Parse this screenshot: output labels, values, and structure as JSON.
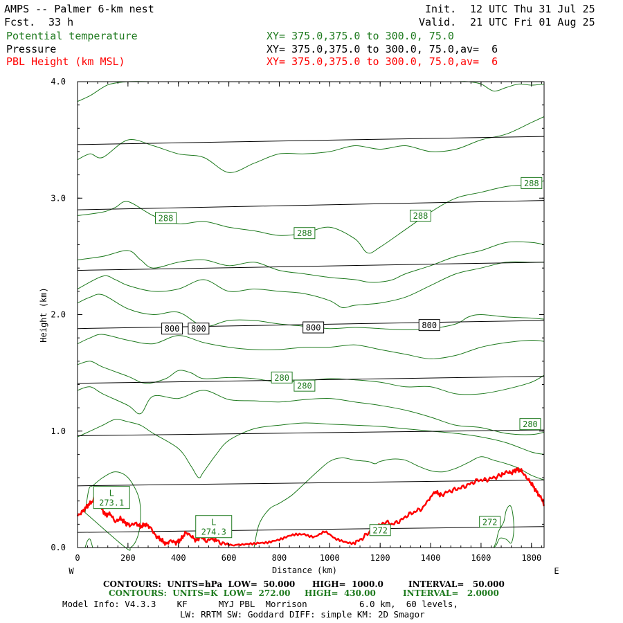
{
  "header": {
    "title": "AMPS -- Palmer 6-km nest",
    "init_label": "Init.",
    "init": "12 UTC Thu 31 Jul 25",
    "fcst_label": "Fcst.",
    "fcst": "33 h",
    "valid_label": "Valid.",
    "valid": "21 UTC Fri 01 Aug 25"
  },
  "fields": [
    {
      "name": "Potential temperature",
      "xy": "XY= 375.0,375.0 to 300.0, 75.0",
      "color": "#1e7a1e"
    },
    {
      "name": "Pressure",
      "xy": "XY= 375.0,375.0 to 300.0, 75.0,av=  6",
      "color": "#000000"
    },
    {
      "name": "PBL Height (km MSL)",
      "xy": "XY= 375.0,375.0 to 300.0, 75.0,av=  6",
      "color": "#ff0000"
    }
  ],
  "chart_data": {
    "type": "line",
    "xlabel": "Distance (km)",
    "ylabel": "Height (km)",
    "xlim": [
      0,
      1850
    ],
    "ylim": [
      0,
      4
    ],
    "x_ticks": [
      0,
      200,
      400,
      600,
      800,
      1000,
      1200,
      1400,
      1600,
      1800
    ],
    "x_tick_labels": [
      "0",
      "200",
      "400",
      "600",
      "800",
      "1000",
      "1200",
      "1400",
      "1600",
      "1800"
    ],
    "y_ticks": [
      0,
      1,
      2,
      3,
      4
    ],
    "y_tick_labels": [
      "0.0",
      "1.0",
      "2.0",
      "3.0",
      "4.0"
    ],
    "west_label": "W",
    "east_label": "E",
    "pressure_lines": [
      {
        "x": [
          0,
          1850
        ],
        "y": [
          0.13,
          0.18
        ]
      },
      {
        "x": [
          0,
          1850
        ],
        "y": [
          0.53,
          0.58
        ]
      },
      {
        "x": [
          0,
          1850
        ],
        "y": [
          0.96,
          1.01
        ]
      },
      {
        "x": [
          0,
          1850
        ],
        "y": [
          1.41,
          1.47
        ]
      },
      {
        "x": [
          0,
          1850
        ],
        "y": [
          1.88,
          1.95
        ]
      },
      {
        "x": [
          0,
          1850
        ],
        "y": [
          2.38,
          2.45
        ]
      },
      {
        "x": [
          0,
          1850
        ],
        "y": [
          2.9,
          2.98
        ]
      },
      {
        "x": [
          0,
          1850
        ],
        "y": [
          3.46,
          3.53
        ]
      }
    ],
    "pressure_labels": [
      {
        "text": "800",
        "x": 375,
        "y": 1.88
      },
      {
        "text": "800",
        "x": 480,
        "y": 1.88
      },
      {
        "text": "800",
        "x": 935,
        "y": 1.89
      },
      {
        "text": "800",
        "x": 1395,
        "y": 1.91
      }
    ],
    "theta_contours": [
      {
        "x": [
          0,
          50,
          100,
          150,
          200,
          250,
          300,
          400,
          450,
          480,
          500,
          550,
          600,
          700,
          800,
          900,
          1000,
          1100,
          1200,
          1300,
          1400,
          1500,
          1600,
          1700,
          1800,
          1850
        ],
        "y": [
          0.95,
          1.0,
          1.05,
          1.1,
          1.08,
          1.05,
          0.98,
          0.85,
          0.7,
          0.6,
          0.65,
          0.8,
          0.92,
          1.02,
          1.05,
          1.07,
          1.06,
          1.05,
          1.04,
          1.02,
          1.0,
          0.98,
          0.95,
          0.9,
          0.82,
          0.8
        ]
      },
      {
        "x": [
          0,
          50,
          100,
          200,
          250,
          300,
          400,
          500,
          600,
          700,
          800,
          900,
          1000,
          1100,
          1200,
          1300,
          1400,
          1500,
          1600,
          1700,
          1800,
          1850
        ],
        "y": [
          1.35,
          1.38,
          1.32,
          1.22,
          1.15,
          1.3,
          1.28,
          1.35,
          1.27,
          1.26,
          1.25,
          1.27,
          1.28,
          1.25,
          1.22,
          1.18,
          1.12,
          1.05,
          1.03,
          0.98,
          0.97,
          0.99
        ]
      },
      {
        "x": [
          0,
          50,
          100,
          200,
          270,
          350,
          400,
          450,
          500,
          600,
          700,
          800,
          900,
          1000,
          1100,
          1200,
          1300,
          1400,
          1500,
          1600,
          1700,
          1800,
          1850
        ],
        "y": [
          1.57,
          1.6,
          1.55,
          1.47,
          1.41,
          1.45,
          1.52,
          1.5,
          1.45,
          1.46,
          1.45,
          1.42,
          1.43,
          1.45,
          1.44,
          1.42,
          1.38,
          1.38,
          1.32,
          1.32,
          1.36,
          1.42,
          1.48
        ]
      },
      {
        "x": [
          0,
          50,
          100,
          200,
          300,
          400,
          500,
          600,
          700,
          800,
          900,
          1000,
          1100,
          1200,
          1300,
          1400,
          1500,
          1600,
          1700,
          1800,
          1850
        ],
        "y": [
          1.75,
          1.8,
          1.83,
          1.78,
          1.75,
          1.82,
          1.76,
          1.72,
          1.7,
          1.7,
          1.72,
          1.72,
          1.74,
          1.7,
          1.66,
          1.62,
          1.65,
          1.72,
          1.76,
          1.78,
          1.77
        ]
      },
      {
        "x": [
          0,
          50,
          100,
          200,
          300,
          400,
          500,
          600,
          700,
          800,
          900,
          1000,
          1100,
          1200,
          1300,
          1400,
          1500,
          1550,
          1600,
          1700,
          1800,
          1850
        ],
        "y": [
          2.1,
          2.15,
          2.17,
          2.05,
          2.0,
          2.02,
          1.9,
          1.95,
          1.95,
          1.92,
          1.9,
          1.88,
          1.89,
          1.88,
          1.87,
          1.88,
          1.92,
          1.98,
          2.0,
          1.98,
          1.97,
          1.96
        ]
      },
      {
        "x": [
          0,
          100,
          150,
          200,
          300,
          400,
          500,
          600,
          700,
          800,
          900,
          1000,
          1050,
          1100,
          1200,
          1300,
          1400,
          1500,
          1600,
          1700,
          1800,
          1850
        ],
        "y": [
          2.22,
          2.33,
          2.3,
          2.25,
          2.2,
          2.22,
          2.3,
          2.2,
          2.22,
          2.2,
          2.18,
          2.12,
          2.06,
          2.08,
          2.1,
          2.15,
          2.25,
          2.35,
          2.4,
          2.45,
          2.45,
          2.45
        ]
      },
      {
        "x": [
          0,
          100,
          200,
          250,
          300,
          400,
          500,
          600,
          700,
          800,
          900,
          1000,
          1100,
          1150,
          1200,
          1250,
          1300,
          1400,
          1500,
          1600,
          1700,
          1800,
          1850
        ],
        "y": [
          2.47,
          2.5,
          2.55,
          2.47,
          2.4,
          2.45,
          2.47,
          2.42,
          2.45,
          2.38,
          2.35,
          2.32,
          2.3,
          2.28,
          2.28,
          2.3,
          2.35,
          2.42,
          2.5,
          2.55,
          2.62,
          2.62,
          2.6
        ]
      },
      {
        "x": [
          0,
          100,
          150,
          200,
          300,
          400,
          500,
          600,
          700,
          800,
          900,
          1000,
          1100,
          1150,
          1200,
          1300,
          1400,
          1500,
          1600,
          1700,
          1800,
          1850
        ],
        "y": [
          2.85,
          2.88,
          2.92,
          2.97,
          2.85,
          2.78,
          2.8,
          2.75,
          2.72,
          2.68,
          2.7,
          2.75,
          2.65,
          2.53,
          2.58,
          2.73,
          2.88,
          3.0,
          3.05,
          3.1,
          3.12,
          3.15
        ]
      },
      {
        "x": [
          0,
          50,
          100,
          200,
          300,
          400,
          500,
          600,
          700,
          800,
          900,
          1000,
          1100,
          1200,
          1300,
          1400,
          1500,
          1600,
          1700,
          1800,
          1850
        ],
        "y": [
          3.33,
          3.38,
          3.35,
          3.5,
          3.45,
          3.38,
          3.35,
          3.22,
          3.3,
          3.38,
          3.38,
          3.4,
          3.45,
          3.42,
          3.45,
          3.4,
          3.42,
          3.5,
          3.55,
          3.65,
          3.7
        ]
      },
      {
        "x": [
          0,
          50,
          100,
          130,
          200,
          300,
          400,
          500,
          600,
          700,
          800,
          900,
          1000,
          1100,
          1200,
          1300,
          1400,
          1500,
          1550,
          1600,
          1650,
          1700,
          1750,
          1800,
          1850
        ],
        "y": [
          3.83,
          3.88,
          3.95,
          3.98,
          4.0,
          4.0,
          4.0,
          4.0,
          4.0,
          4.0,
          4.0,
          4.0,
          4.0,
          4.0,
          4.0,
          4.0,
          4.0,
          4.0,
          4.0,
          3.98,
          3.92,
          3.95,
          3.98,
          3.97,
          3.98
        ]
      }
    ],
    "theta_closed": [
      {
        "x": [
          30,
          45,
          60,
          100,
          150,
          200,
          240,
          250,
          245,
          230,
          210,
          190,
          30
        ],
        "y": [
          0.3,
          0.5,
          0.53,
          0.6,
          0.65,
          0.6,
          0.45,
          0.3,
          0.15,
          0.05,
          0.0,
          0.0,
          0.3
        ]
      },
      {
        "x": [
          700,
          720,
          760,
          800,
          850,
          900,
          950,
          1000,
          1050,
          1100,
          1150,
          1180,
          1200,
          1250,
          1300,
          1350,
          1400,
          1450,
          1500,
          1550,
          1600,
          1650,
          1700,
          1750,
          1800,
          1850
        ],
        "y": [
          0.0,
          0.2,
          0.33,
          0.38,
          0.45,
          0.55,
          0.65,
          0.74,
          0.77,
          0.75,
          0.74,
          0.72,
          0.74,
          0.76,
          0.75,
          0.7,
          0.66,
          0.65,
          0.68,
          0.73,
          0.78,
          0.75,
          0.72,
          0.68,
          0.62,
          0.58
        ]
      },
      {
        "x": [
          1650,
          1660,
          1670,
          1690,
          1700,
          1715,
          1725,
          1730,
          1720,
          1700,
          1675,
          1660,
          1650
        ],
        "y": [
          0.0,
          0.05,
          0.14,
          0.22,
          0.32,
          0.36,
          0.3,
          0.15,
          0.04,
          0.07,
          0.08,
          0.02,
          0.0
        ]
      },
      {
        "x": [
          30,
          40,
          50,
          60
        ],
        "y": [
          0.0,
          0.06,
          0.07,
          0.0
        ]
      }
    ],
    "theta_labels": [
      {
        "text": "288",
        "x": 350,
        "y": 2.83
      },
      {
        "text": "288",
        "x": 900,
        "y": 2.7
      },
      {
        "text": "288",
        "x": 1360,
        "y": 2.85
      },
      {
        "text": "288",
        "x": 1800,
        "y": 3.13
      },
      {
        "text": "280",
        "x": 810,
        "y": 1.46
      },
      {
        "text": "280",
        "x": 900,
        "y": 1.39
      },
      {
        "text": "280",
        "x": 1795,
        "y": 1.06
      },
      {
        "text": "272",
        "x": 1635,
        "y": 0.22
      },
      {
        "text": "272",
        "x": 1200,
        "y": 0.15
      }
    ],
    "lows": [
      {
        "label": "L",
        "value": "273.1",
        "x": 135,
        "y": 0.43
      },
      {
        "label": "L",
        "value": "274.3",
        "x": 540,
        "y": 0.18
      }
    ],
    "pbl_series": {
      "name": "PBL Height (km MSL)",
      "x": [
        0,
        20,
        40,
        60,
        75,
        90,
        110,
        130,
        150,
        170,
        190,
        210,
        230,
        250,
        270,
        290,
        310,
        330,
        350,
        370,
        390,
        410,
        430,
        450,
        470,
        490,
        510,
        530,
        550,
        580,
        620,
        660,
        700,
        740,
        780,
        820,
        860,
        900,
        940,
        980,
        1020,
        1060,
        1100,
        1130,
        1160,
        1190,
        1220,
        1250,
        1280,
        1310,
        1340,
        1370,
        1400,
        1420,
        1440,
        1470,
        1500,
        1530,
        1560,
        1590,
        1620,
        1650,
        1680,
        1700,
        1720,
        1740,
        1760,
        1780,
        1800,
        1820,
        1840,
        1850
      ],
      "y": [
        0.27,
        0.31,
        0.36,
        0.4,
        0.49,
        0.36,
        0.28,
        0.29,
        0.22,
        0.25,
        0.21,
        0.19,
        0.21,
        0.18,
        0.2,
        0.17,
        0.1,
        0.07,
        0.03,
        0.06,
        0.04,
        0.07,
        0.13,
        0.1,
        0.06,
        0.1,
        0.05,
        0.08,
        0.06,
        0.03,
        0.03,
        0.03,
        0.02,
        0.04,
        0.07,
        0.08,
        0.1,
        0.12,
        0.1,
        0.13,
        0.07,
        0.06,
        0.04,
        0.08,
        0.14,
        0.18,
        0.22,
        0.2,
        0.23,
        0.28,
        0.31,
        0.34,
        0.44,
        0.48,
        0.45,
        0.48,
        0.5,
        0.52,
        0.55,
        0.58,
        0.58,
        0.6,
        0.62,
        0.65,
        0.64,
        0.67,
        0.66,
        0.6,
        0.55,
        0.48,
        0.42,
        0.37
      ],
      "color": "#ff0000"
    },
    "colors": {
      "pressure": "#000000",
      "theta": "#1e7a1e",
      "pbl": "#ff0000"
    }
  },
  "footer": {
    "line1": {
      "a": "CONTOURS:  UNITS=hPa  LOW=  50.000",
      "b": "HIGH=  1000.0",
      "c": "INTERVAL=   50.000"
    },
    "line2": {
      "a": "CONTOURS:  UNITS=K  LOW=  272.00",
      "b": "HIGH=  430.00",
      "c": "INTERVAL=   2.0000"
    },
    "line3": "Model Info: V4.3.3    KF      MYJ PBL  Morrison          6.0 km,  60 levels,",
    "line4": "LW: RRTM SW: Goddard DIFF: simple KM: 2D Smagor"
  }
}
